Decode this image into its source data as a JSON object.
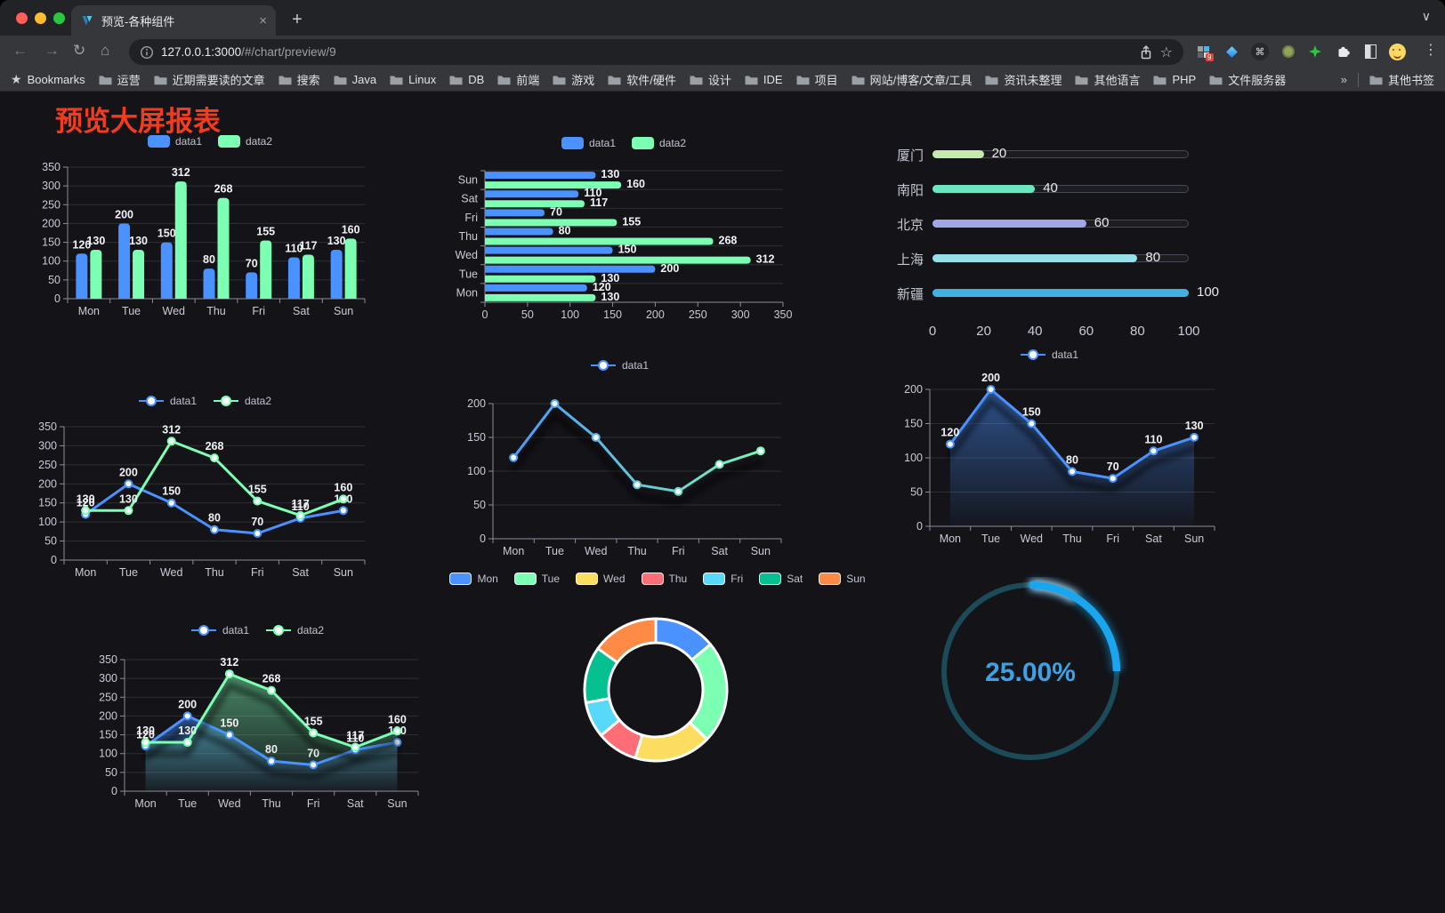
{
  "browser": {
    "tab": {
      "title": "预览-各种组件",
      "close_glyph": "×"
    },
    "new_tab_glyph": "+",
    "tab_search_glyph": "∨",
    "nav": {
      "back": "←",
      "forward": "→",
      "reload": "↻",
      "home": "⌂"
    },
    "address": {
      "host": "127.0.0.1:3000",
      "path": "/#/chart/preview/9"
    },
    "star_glyph": "☆",
    "menu_glyph": "⋮",
    "extensions_badge": "9",
    "bookmarks_bar": {
      "star_glyph": "★",
      "label": "Bookmarks",
      "folders": [
        "运营",
        "近期需要读的文章",
        "搜索",
        "Java",
        "Linux",
        "DB",
        "前端",
        "游戏",
        "软件/硬件",
        "设计",
        "IDE",
        "项目",
        "网站/博客/文章/工具",
        "资讯未整理",
        "其他语言",
        "PHP",
        "文件服务器"
      ],
      "overflow_glyph": "»",
      "other_bookmarks": "其他书签"
    }
  },
  "page": {
    "title": "预览大屏报表"
  },
  "theme": {
    "background": "#131318",
    "title_color": "#f53b1d",
    "axis_label": "#c9cbd6",
    "axis_line": "#8b8d9b",
    "grid": "rgba(255,255,255,0.12)",
    "value_label": "#f2f3f7",
    "legend_text": "#c2c4d0",
    "gauge_text": "#3da2e2"
  },
  "chart_data": [
    {
      "id": "bar-vertical",
      "type": "bar",
      "categories": [
        "Mon",
        "Tue",
        "Wed",
        "Thu",
        "Fri",
        "Sat",
        "Sun"
      ],
      "series": [
        {
          "name": "data1",
          "color": "#4992ff",
          "values": [
            120,
            200,
            150,
            80,
            70,
            110,
            130
          ]
        },
        {
          "name": "data2",
          "color": "#7cffb2",
          "values": [
            130,
            130,
            312,
            268,
            155,
            117,
            160
          ]
        }
      ],
      "ylim": [
        0,
        350
      ],
      "ytick": 50,
      "legend_icon": "rect",
      "value_labels": true
    },
    {
      "id": "bar-horizontal",
      "type": "bar",
      "orientation": "horizontal",
      "categories": [
        "Mon",
        "Tue",
        "Wed",
        "Thu",
        "Fri",
        "Sat",
        "Sun"
      ],
      "series": [
        {
          "name": "data1",
          "color": "#4992ff",
          "values": [
            120,
            200,
            150,
            80,
            70,
            110,
            130
          ]
        },
        {
          "name": "data2",
          "color": "#7cffb2",
          "values": [
            130,
            130,
            312,
            268,
            155,
            117,
            160
          ]
        }
      ],
      "xlim": [
        0,
        350
      ],
      "xtick": 50,
      "legend_icon": "rect",
      "value_labels": true
    },
    {
      "id": "progress",
      "type": "bar",
      "subtype": "progress",
      "categories": [
        "厦门",
        "南阳",
        "北京",
        "上海",
        "新疆"
      ],
      "values": [
        20,
        40,
        60,
        80,
        100
      ],
      "colors": [
        "#c4ebad",
        "#6be6c1",
        "#a0a7e6",
        "#96dee8",
        "#3fb1e3"
      ],
      "xlim": [
        0,
        100
      ],
      "xticks": [
        0,
        20,
        40,
        60,
        80,
        100
      ]
    },
    {
      "id": "line-two",
      "type": "line",
      "categories": [
        "Mon",
        "Tue",
        "Wed",
        "Thu",
        "Fri",
        "Sat",
        "Sun"
      ],
      "series": [
        {
          "name": "data1",
          "color": "#4992ff",
          "values": [
            120,
            200,
            150,
            80,
            70,
            110,
            130
          ]
        },
        {
          "name": "data2",
          "color": "#7cffb2",
          "values": [
            130,
            130,
            312,
            268,
            155,
            117,
            160
          ]
        }
      ],
      "ylim": [
        0,
        350
      ],
      "ytick": 50,
      "legend_icon": "marker",
      "value_labels": true
    },
    {
      "id": "line-gradient",
      "type": "line",
      "shadow": true,
      "categories": [
        "Mon",
        "Tue",
        "Wed",
        "Thu",
        "Fri",
        "Sat",
        "Sun"
      ],
      "series": [
        {
          "name": "data1",
          "color": "#4992ff",
          "color2": "#7cffb2",
          "values": [
            120,
            200,
            150,
            80,
            70,
            110,
            130
          ]
        }
      ],
      "ylim": [
        0,
        200
      ],
      "ytick": 50,
      "legend_icon": "marker",
      "value_labels": false
    },
    {
      "id": "area-single",
      "type": "line",
      "shadow": true,
      "categories": [
        "Mon",
        "Tue",
        "Wed",
        "Thu",
        "Fri",
        "Sat",
        "Sun"
      ],
      "series": [
        {
          "name": "data1",
          "color": "#4992ff",
          "values": [
            120,
            200,
            150,
            80,
            70,
            110,
            130
          ],
          "area": true
        }
      ],
      "ylim": [
        0,
        200
      ],
      "ytick": 50,
      "legend_icon": "marker",
      "value_labels": true
    },
    {
      "id": "area-two",
      "type": "line",
      "shadow": true,
      "categories": [
        "Mon",
        "Tue",
        "Wed",
        "Thu",
        "Fri",
        "Sat",
        "Sun"
      ],
      "series": [
        {
          "name": "data1",
          "color": "#4992ff",
          "values": [
            120,
            200,
            150,
            80,
            70,
            110,
            130
          ],
          "area": true
        },
        {
          "name": "data2",
          "color": "#7cffb2",
          "values": [
            130,
            130,
            312,
            268,
            155,
            117,
            160
          ],
          "area": true
        }
      ],
      "ylim": [
        0,
        350
      ],
      "ytick": 50,
      "legend_icon": "marker",
      "value_labels": true
    },
    {
      "id": "donut",
      "type": "pie",
      "categories": [
        "Mon",
        "Tue",
        "Wed",
        "Thu",
        "Fri",
        "Sat",
        "Sun"
      ],
      "values": [
        120,
        200,
        150,
        80,
        70,
        110,
        130
      ],
      "colors": [
        "#4992ff",
        "#7cffb2",
        "#fddd60",
        "#ff6e76",
        "#58d9f9",
        "#05c091",
        "#ff8a45"
      ],
      "legend_icon": "rect"
    },
    {
      "id": "gauge",
      "type": "gauge",
      "value": 25,
      "max": 100,
      "label": "25.00%",
      "color": "#19a6ee",
      "track_color": "#1b4a59"
    }
  ]
}
